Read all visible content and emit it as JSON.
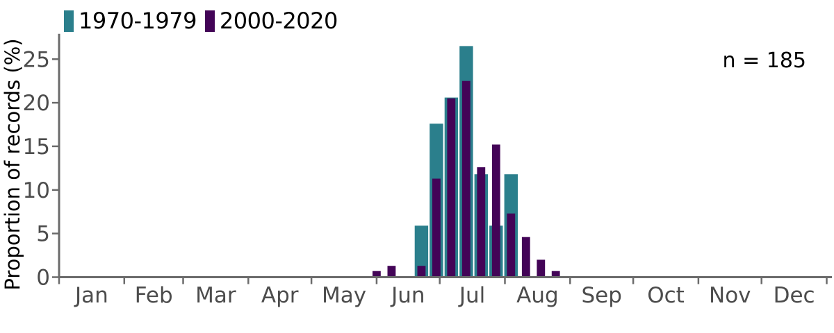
{
  "chart_data": {
    "type": "bar",
    "title": "",
    "xlabel": "",
    "ylabel": "Proportion of records (%)",
    "annotation": "n = 185",
    "x_unit": "day_of_year",
    "months": [
      "Jan",
      "Feb",
      "Mar",
      "Apr",
      "May",
      "Jun",
      "Jul",
      "Aug",
      "Sep",
      "Oct",
      "Nov",
      "Dec"
    ],
    "month_lengths_days": [
      31,
      28,
      31,
      30,
      31,
      30,
      31,
      31,
      30,
      31,
      30,
      31
    ],
    "yticks": [
      0,
      5,
      10,
      15,
      20,
      25
    ],
    "ylim": [
      0,
      27.9
    ],
    "grid": false,
    "legend_position": "top-left",
    "bin_width": "weekly",
    "series": [
      {
        "name": "1970-1979",
        "color": "#2B7F8C",
        "bar_width_days": 6.4,
        "x_day_of_year": [
          172.3,
          179.4,
          186.5,
          193.6,
          200.7,
          207.8,
          214.9
        ],
        "values": [
          5.9,
          17.6,
          20.6,
          26.5,
          11.8,
          5.9,
          11.8
        ]
      },
      {
        "name": "2000-2020",
        "color": "#430457",
        "bar_width_days": 3.9,
        "x_day_of_year": [
          151.0,
          158.1,
          172.3,
          179.4,
          186.5,
          193.6,
          200.7,
          207.8,
          214.9,
          222.0,
          229.1,
          236.2
        ],
        "values": [
          0.7,
          1.3,
          1.3,
          11.3,
          20.5,
          22.5,
          12.6,
          15.2,
          7.3,
          4.6,
          2.0,
          0.7
        ]
      }
    ],
    "colors": {
      "axis": "#6B6B6B",
      "tick_labels": "#4C4C4C",
      "text": "#000000",
      "background": "#FFFFFF"
    }
  }
}
